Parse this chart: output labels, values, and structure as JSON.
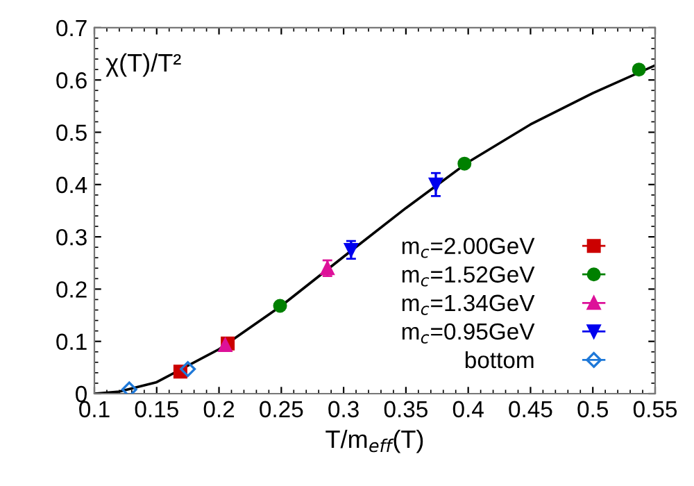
{
  "chart_data": {
    "type": "scatter",
    "ylabel": "χ(T)/T²",
    "xlabel": "T/m$_{eff}$(T)",
    "xlim": [
      0.1,
      0.55
    ],
    "ylim": [
      0,
      0.7
    ],
    "xticks": [
      0.1,
      0.15,
      0.2,
      0.25,
      0.3,
      0.35,
      0.4,
      0.45,
      0.5,
      0.55
    ],
    "yticks": [
      0,
      0.1,
      0.2,
      0.3,
      0.4,
      0.5,
      0.6,
      0.7
    ],
    "grid": false,
    "legend": "bottom right",
    "series": [
      {
        "type": "line",
        "color": "#000000",
        "marker": "none",
        "x": [
          0.1,
          0.12,
          0.15,
          0.2,
          0.25,
          0.3,
          0.35,
          0.4,
          0.45,
          0.5,
          0.55
        ],
        "values": [
          0,
          0.004,
          0.022,
          0.085,
          0.168,
          0.262,
          0.355,
          0.443,
          0.515,
          0.575,
          0.628
        ]
      },
      {
        "name": "m$_{c}$=2.00GeV",
        "color": "#cc0000",
        "marker": "square",
        "x": [
          0.169,
          0.207
        ],
        "values": [
          0.042,
          0.096
        ]
      },
      {
        "name": "m$_{c}$=1.52GeV",
        "color": "#008000",
        "marker": "circle",
        "x": [
          0.249,
          0.397,
          0.537
        ],
        "values": [
          0.168,
          0.44,
          0.62
        ]
      },
      {
        "name": "m$_{c}$=1.34GeV",
        "color": "#dd1199",
        "marker": "triangle",
        "x": [
          0.205,
          0.287
        ],
        "values": [
          0.093,
          0.24
        ],
        "errors": [
          null,
          0.015
        ]
      },
      {
        "name": "m$_{c}$=0.95GeV",
        "color": "#0000ee",
        "marker": "triangle_down",
        "x": [
          0.306,
          0.374
        ],
        "values": [
          0.275,
          0.4
        ],
        "errors": [
          0.017,
          0.022
        ]
      },
      {
        "name": "bottom",
        "color": "#1e78d8",
        "marker": "diamond",
        "x": [
          0.128,
          0.175
        ],
        "values": [
          0.008,
          0.047
        ]
      }
    ]
  }
}
